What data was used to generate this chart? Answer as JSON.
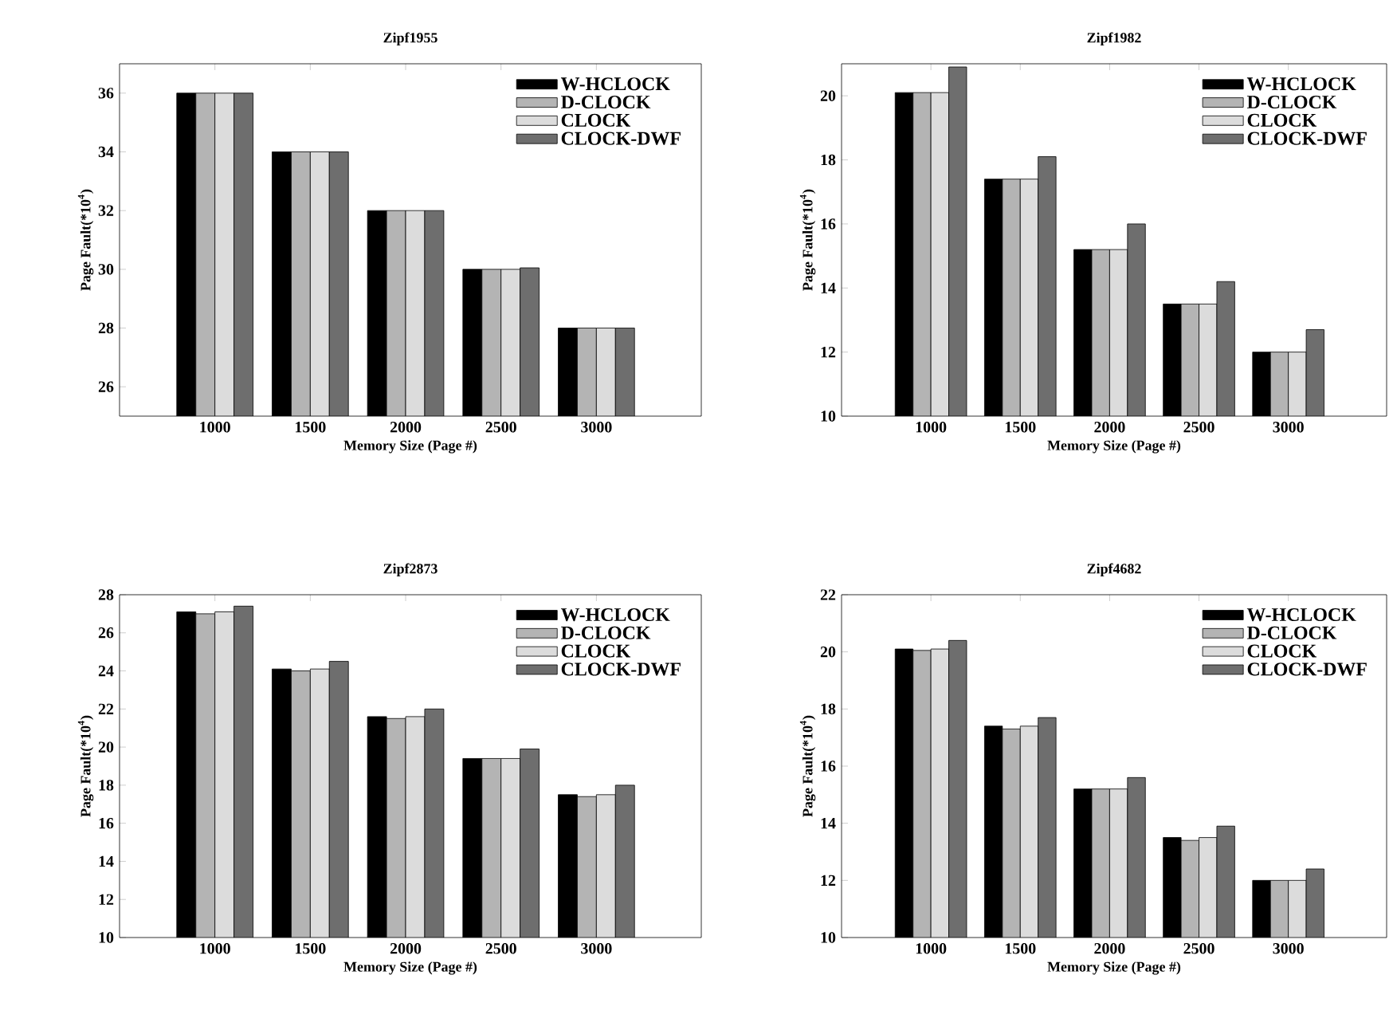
{
  "chart_data": [
    {
      "type": "bar",
      "title": "Zipf1955",
      "xlabel": "Memory Size (Page #)",
      "ylabel": "Page Fault(*10$^{4}$)",
      "categories": [
        "1000",
        "1500",
        "2000",
        "2500",
        "3000"
      ],
      "ylim": [
        25,
        37
      ],
      "yticks": [
        26,
        28,
        30,
        32,
        34,
        36
      ],
      "legend": "top right",
      "grid": false,
      "series": [
        {
          "name": "W-HCLOCK",
          "color": "#000000",
          "values": [
            36,
            34,
            32,
            30,
            28
          ]
        },
        {
          "name": "D-CLOCK",
          "color": "#b4b4b4",
          "values": [
            36,
            34,
            32,
            30,
            28
          ]
        },
        {
          "name": "CLOCK",
          "color": "#dcdcdc",
          "values": [
            36,
            34,
            32,
            30,
            28
          ]
        },
        {
          "name": "CLOCK-DWF",
          "color": "#6e6e6e",
          "values": [
            36,
            34,
            32,
            30.05,
            28
          ]
        }
      ]
    },
    {
      "type": "bar",
      "title": "Zipf1982",
      "xlabel": "Memory Size (Page #)",
      "ylabel": "Page Fault(*10$^{4}$)",
      "categories": [
        "1000",
        "1500",
        "2000",
        "2500",
        "3000"
      ],
      "ylim": [
        10,
        21
      ],
      "yticks": [
        10,
        12,
        14,
        16,
        18,
        20
      ],
      "legend": "top right",
      "grid": false,
      "series": [
        {
          "name": "W-HCLOCK",
          "color": "#000000",
          "values": [
            20.1,
            17.4,
            15.2,
            13.5,
            12.0
          ]
        },
        {
          "name": "D-CLOCK",
          "color": "#b4b4b4",
          "values": [
            20.1,
            17.4,
            15.2,
            13.5,
            12.0
          ]
        },
        {
          "name": "CLOCK",
          "color": "#dcdcdc",
          "values": [
            20.1,
            17.4,
            15.2,
            13.5,
            12.0
          ]
        },
        {
          "name": "CLOCK-DWF",
          "color": "#6e6e6e",
          "values": [
            20.9,
            18.1,
            16.0,
            14.2,
            12.7
          ]
        }
      ]
    },
    {
      "type": "bar",
      "title": "Zipf2873",
      "xlabel": "Memory Size (Page #)",
      "ylabel": "Page Fault(*10$^{4}$)",
      "categories": [
        "1000",
        "1500",
        "2000",
        "2500",
        "3000"
      ],
      "ylim": [
        10,
        28
      ],
      "yticks": [
        10,
        12,
        14,
        16,
        18,
        20,
        22,
        24,
        26,
        28
      ],
      "legend": "top right",
      "grid": false,
      "series": [
        {
          "name": "W-HCLOCK",
          "color": "#000000",
          "values": [
            27.1,
            24.1,
            21.6,
            19.4,
            17.5
          ]
        },
        {
          "name": "D-CLOCK",
          "color": "#b4b4b4",
          "values": [
            27.0,
            24.0,
            21.5,
            19.4,
            17.4
          ]
        },
        {
          "name": "CLOCK",
          "color": "#dcdcdc",
          "values": [
            27.1,
            24.1,
            21.6,
            19.4,
            17.5
          ]
        },
        {
          "name": "CLOCK-DWF",
          "color": "#6e6e6e",
          "values": [
            27.4,
            24.5,
            22.0,
            19.9,
            18.0
          ]
        }
      ]
    },
    {
      "type": "bar",
      "title": "Zipf4682",
      "xlabel": "Memory Size (Page #)",
      "ylabel": "Page Fault(*10$^{4}$)",
      "categories": [
        "1000",
        "1500",
        "2000",
        "2500",
        "3000"
      ],
      "ylim": [
        10,
        22
      ],
      "yticks": [
        10,
        12,
        14,
        16,
        18,
        20,
        22
      ],
      "legend": "top right",
      "grid": false,
      "series": [
        {
          "name": "W-HCLOCK",
          "color": "#000000",
          "values": [
            20.1,
            17.4,
            15.2,
            13.5,
            12.0
          ]
        },
        {
          "name": "D-CLOCK",
          "color": "#b4b4b4",
          "values": [
            20.05,
            17.3,
            15.2,
            13.4,
            12.0
          ]
        },
        {
          "name": "CLOCK",
          "color": "#dcdcdc",
          "values": [
            20.1,
            17.4,
            15.2,
            13.5,
            12.0
          ]
        },
        {
          "name": "CLOCK-DWF",
          "color": "#6e6e6e",
          "values": [
            20.4,
            17.7,
            15.6,
            13.9,
            12.4
          ]
        }
      ]
    }
  ]
}
